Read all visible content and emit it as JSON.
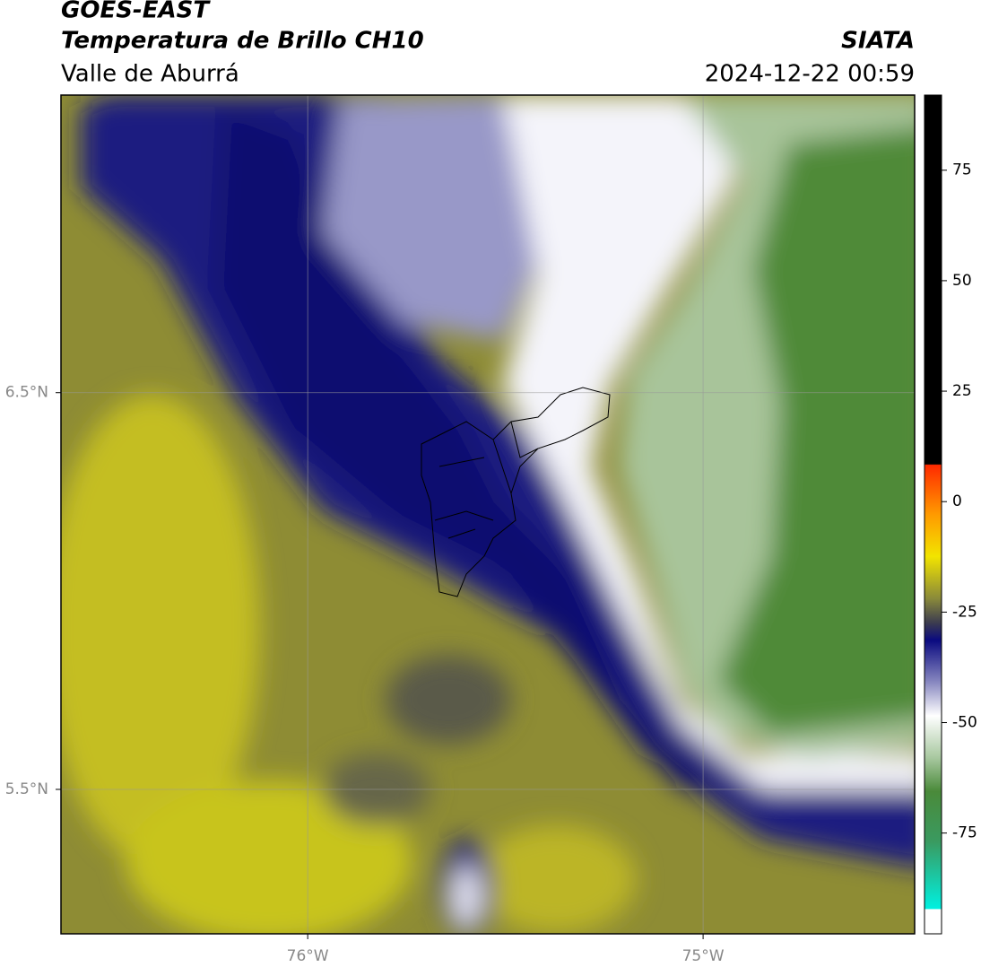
{
  "header": {
    "title": "GOES-EAST",
    "subtitle": "Temperatura de Brillo CH10",
    "region": "Valle de Aburrá",
    "agency": "SIATA",
    "datetime": "2024-12-22 00:59"
  },
  "map": {
    "latlim": [
      5.136,
      7.25
    ],
    "lonlim": [
      -76.624,
      -74.465
    ],
    "lat_ticks": [
      {
        "value": 6.5,
        "label": "6.5°N"
      },
      {
        "value": 5.5,
        "label": "5.5°N"
      }
    ],
    "lon_ticks": [
      {
        "value": -76,
        "label": "76°W"
      },
      {
        "value": -75,
        "label": "75°W"
      }
    ],
    "grid": true
  },
  "colorbar": {
    "lim": [
      -97.8,
      92
    ],
    "ticks": [
      75,
      50,
      25,
      0,
      -25,
      -50,
      -75
    ]
  }
}
